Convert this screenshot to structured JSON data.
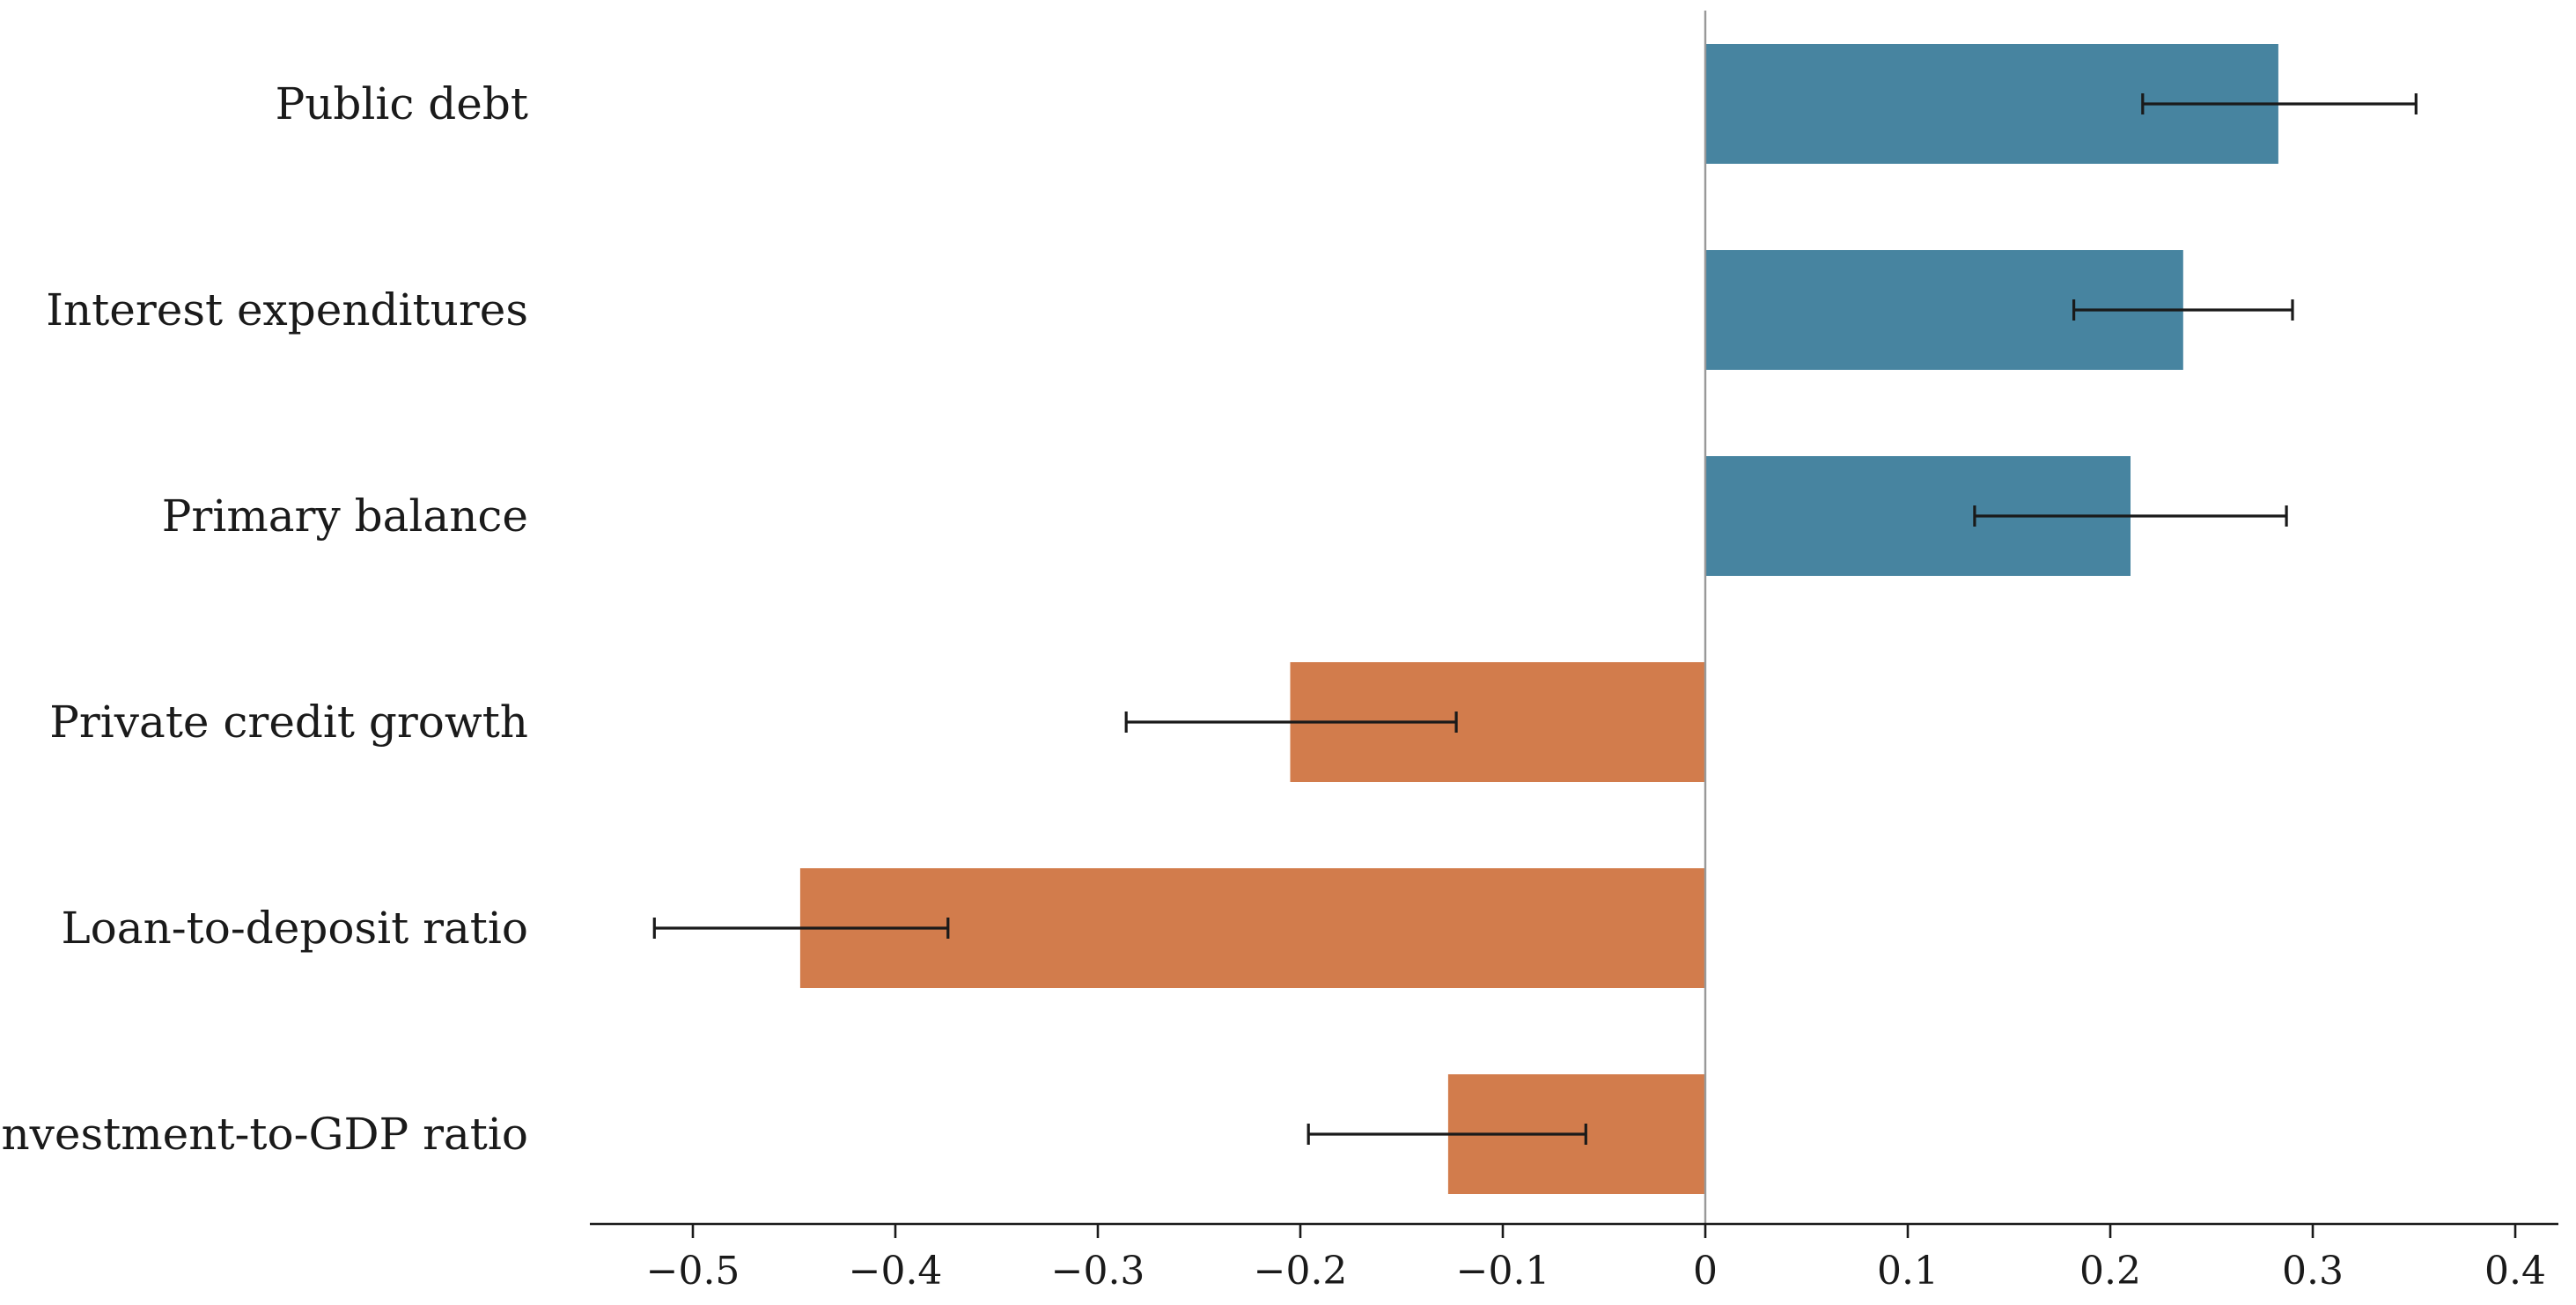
{
  "chart_data": {
    "type": "bar",
    "orientation": "horizontal",
    "categories": [
      "Public debt",
      "Interest expenditures",
      "Primary balance",
      "Private credit growth",
      "Loan-to-deposit ratio",
      "Investment-to-GDP ratio"
    ],
    "values": [
      0.283,
      0.236,
      0.21,
      -0.205,
      -0.447,
      -0.127
    ],
    "error_low": [
      0.216,
      0.182,
      0.133,
      -0.286,
      -0.519,
      -0.196
    ],
    "error_high": [
      0.351,
      0.29,
      0.287,
      -0.123,
      -0.374,
      -0.059
    ],
    "colors": {
      "positive": "#4784a0",
      "negative": "#d27c4c",
      "errorbar": "#1a1a1a",
      "zero_line": "#999999",
      "axis": "#1a1a1a"
    },
    "xlim": [
      -0.55,
      0.42
    ],
    "xticks": [
      -0.5,
      -0.4,
      -0.3,
      -0.2,
      -0.1,
      0,
      0.1,
      0.2,
      0.3,
      0.4
    ],
    "xtick_labels": [
      "−0.5",
      "−0.4",
      "−0.3",
      "−0.2",
      "−0.1",
      "0",
      "0.1",
      "0.2",
      "0.3",
      "0.4"
    ],
    "title": "",
    "xlabel": "",
    "ylabel": "",
    "grid": false,
    "legend": "none"
  }
}
